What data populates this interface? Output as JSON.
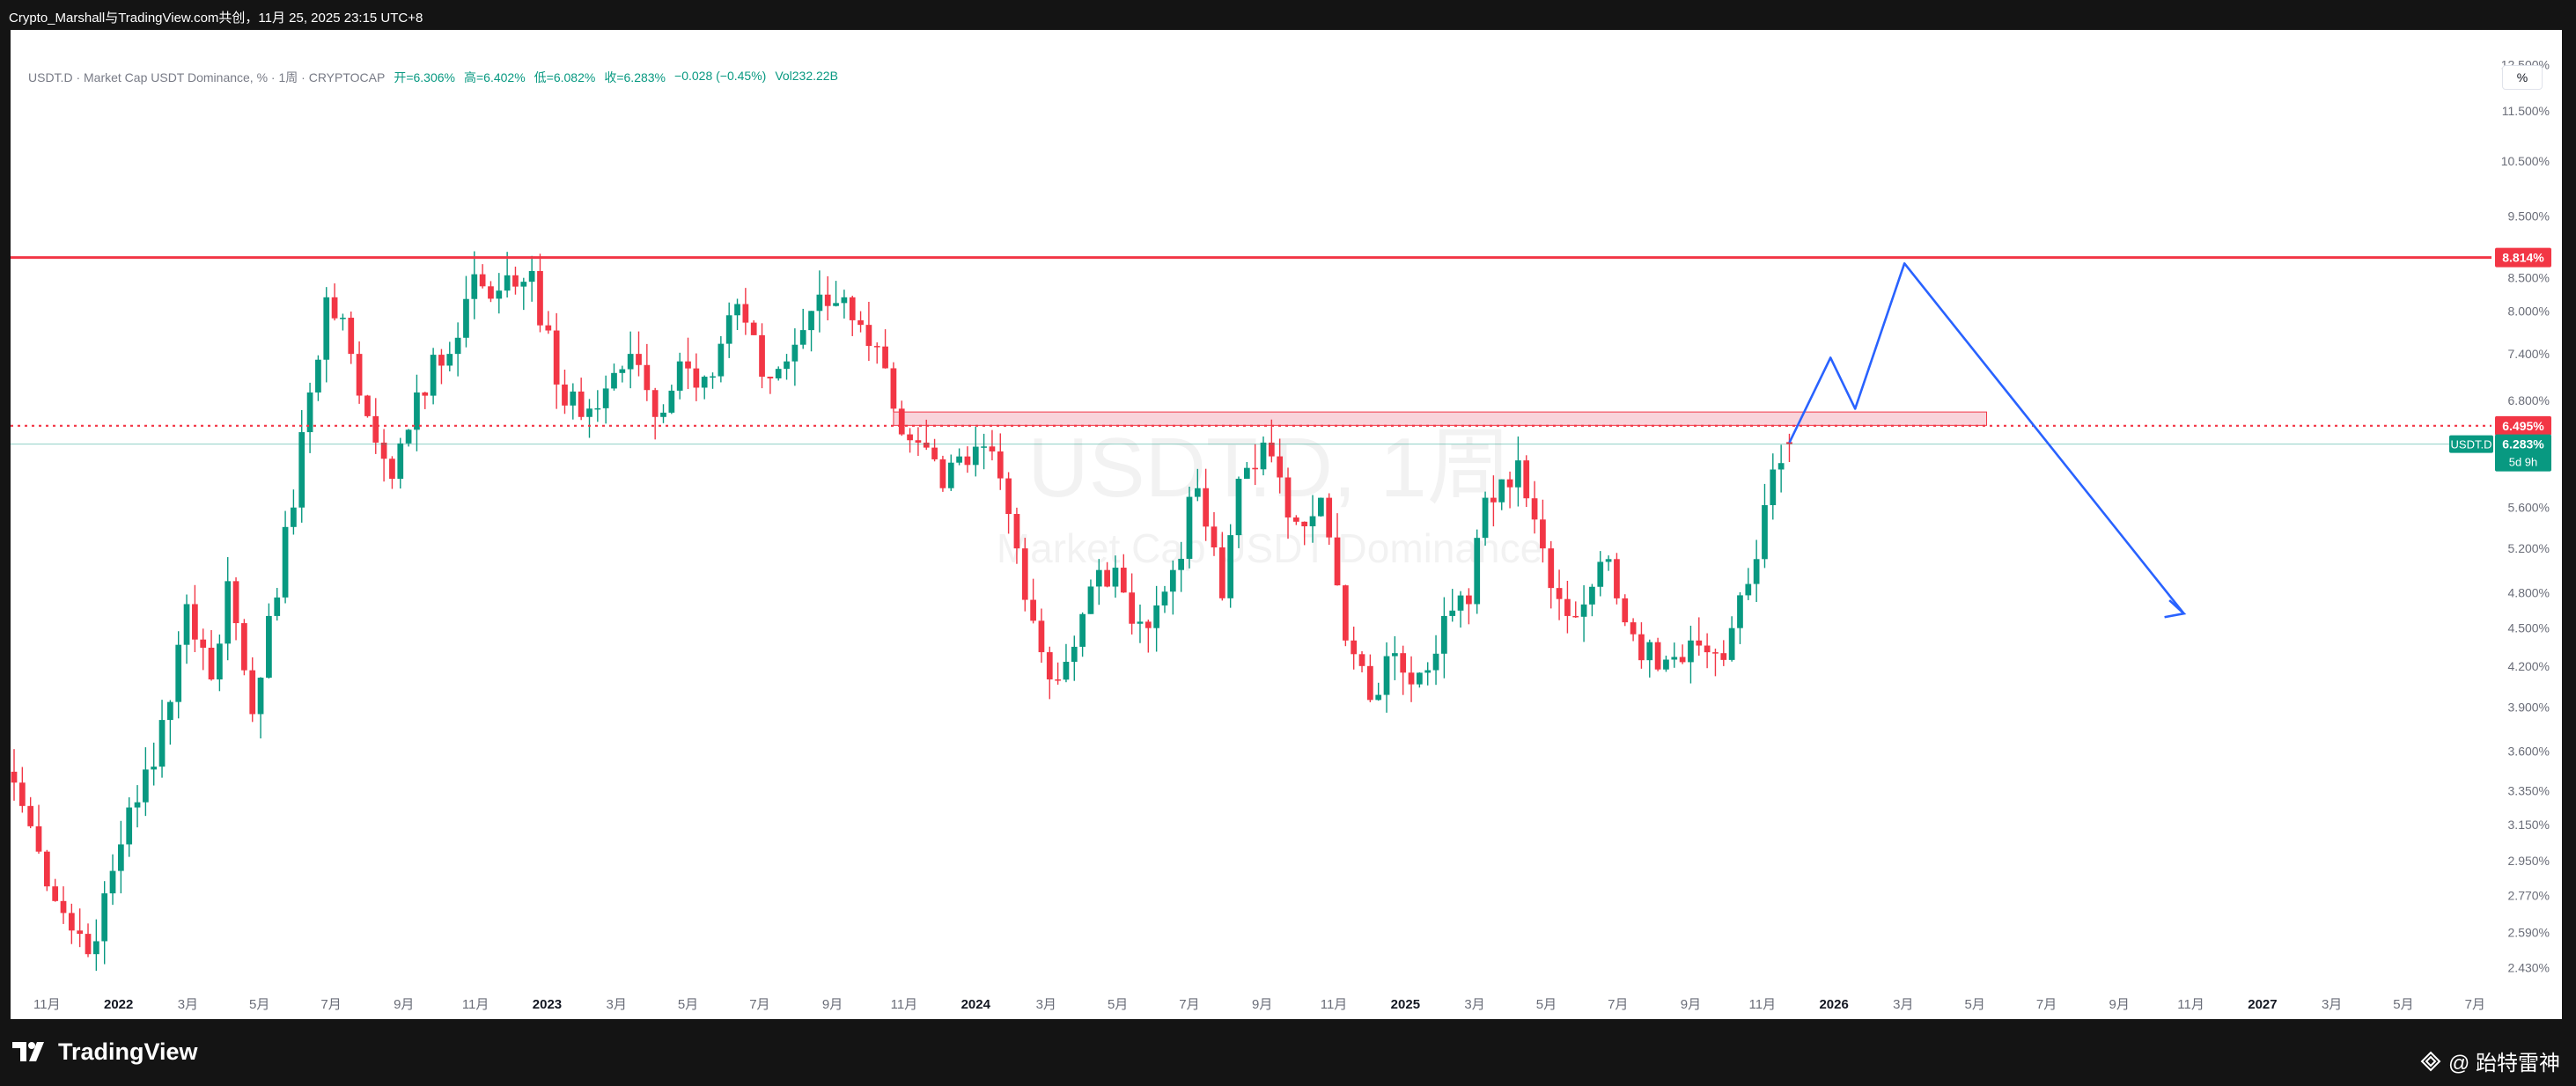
{
  "header": {
    "title": "Crypto_Marshall与TradingView.com共创，11月 25, 2025 23:15 UTC+8"
  },
  "legend": {
    "symbol": "USDT.D · Market Cap USDT Dominance, % · 1周 · CRYPTOCAP",
    "open_label": "开=6.306%",
    "high_label": "高=6.402%",
    "low_label": "低=6.082%",
    "close_label": "收=6.283%",
    "change": "−0.028 (−0.45%)",
    "volume": "Vol232.22B"
  },
  "scale_button": "%",
  "watermark": {
    "main": "USDT.D, 1周",
    "sub": "Market Cap USDT Dominance"
  },
  "footer": {
    "brand": "TradingView",
    "handle": "@ 跆特雷神"
  },
  "colors": {
    "up": "#089981",
    "down": "#f23645",
    "resistance": "#f23645",
    "projection": "#2962ff",
    "zone_fill": "#f7c6cf",
    "zone_border": "#f23645"
  },
  "chart_data": {
    "type": "candlestick",
    "timeframe": "1W",
    "y_scale": "log",
    "ylim": [
      2.33,
      12.9
    ],
    "y_ticks": [
      12.5,
      11.5,
      10.5,
      9.5,
      8.5,
      8.0,
      7.4,
      6.8,
      5.6,
      5.2,
      4.8,
      4.5,
      4.2,
      3.9,
      3.6,
      3.35,
      3.15,
      2.95,
      2.77,
      2.59,
      2.43
    ],
    "y_tick_labels": [
      "12.500%",
      "11.500%",
      "10.500%",
      "9.500%",
      "8.500%",
      "8.000%",
      "7.400%",
      "6.800%",
      "5.600%",
      "5.200%",
      "4.800%",
      "4.500%",
      "4.200%",
      "3.900%",
      "3.600%",
      "3.350%",
      "3.150%",
      "2.950%",
      "2.770%",
      "2.590%",
      "2.430%"
    ],
    "x_range": [
      "2021-10-01",
      "2027-07-15"
    ],
    "x_ticks": [
      {
        "date": "2021-11-01",
        "label": "11月",
        "bold": false
      },
      {
        "date": "2022-01-01",
        "label": "2022",
        "bold": true
      },
      {
        "date": "2022-03-01",
        "label": "3月",
        "bold": false
      },
      {
        "date": "2022-05-01",
        "label": "5月",
        "bold": false
      },
      {
        "date": "2022-07-01",
        "label": "7月",
        "bold": false
      },
      {
        "date": "2022-09-01",
        "label": "9月",
        "bold": false
      },
      {
        "date": "2022-11-01",
        "label": "11月",
        "bold": false
      },
      {
        "date": "2023-01-01",
        "label": "2023",
        "bold": true
      },
      {
        "date": "2023-03-01",
        "label": "3月",
        "bold": false
      },
      {
        "date": "2023-05-01",
        "label": "5月",
        "bold": false
      },
      {
        "date": "2023-07-01",
        "label": "7月",
        "bold": false
      },
      {
        "date": "2023-09-01",
        "label": "9月",
        "bold": false
      },
      {
        "date": "2023-11-01",
        "label": "11月",
        "bold": false
      },
      {
        "date": "2024-01-01",
        "label": "2024",
        "bold": true
      },
      {
        "date": "2024-03-01",
        "label": "3月",
        "bold": false
      },
      {
        "date": "2024-05-01",
        "label": "5月",
        "bold": false
      },
      {
        "date": "2024-07-01",
        "label": "7月",
        "bold": false
      },
      {
        "date": "2024-09-01",
        "label": "9月",
        "bold": false
      },
      {
        "date": "2024-11-01",
        "label": "11月",
        "bold": false
      },
      {
        "date": "2025-01-01",
        "label": "2025",
        "bold": true
      },
      {
        "date": "2025-03-01",
        "label": "3月",
        "bold": false
      },
      {
        "date": "2025-05-01",
        "label": "5月",
        "bold": false
      },
      {
        "date": "2025-07-01",
        "label": "7月",
        "bold": false
      },
      {
        "date": "2025-09-01",
        "label": "9月",
        "bold": false
      },
      {
        "date": "2025-11-01",
        "label": "11月",
        "bold": false
      },
      {
        "date": "2026-01-01",
        "label": "2026",
        "bold": true
      },
      {
        "date": "2026-03-01",
        "label": "3月",
        "bold": false
      },
      {
        "date": "2026-05-01",
        "label": "5月",
        "bold": false
      },
      {
        "date": "2026-07-01",
        "label": "7月",
        "bold": false
      },
      {
        "date": "2026-09-01",
        "label": "9月",
        "bold": false
      },
      {
        "date": "2026-11-01",
        "label": "11月",
        "bold": false
      },
      {
        "date": "2027-01-01",
        "label": "2027",
        "bold": true
      },
      {
        "date": "2027-03-01",
        "label": "3月",
        "bold": false
      },
      {
        "date": "2027-05-01",
        "label": "5月",
        "bold": false
      },
      {
        "date": "2027-07-01",
        "label": "7月",
        "bold": false
      }
    ],
    "anchors": [
      {
        "date": "2021-10-04",
        "close": 3.4
      },
      {
        "date": "2021-10-25",
        "close": 3.0
      },
      {
        "date": "2021-11-22",
        "close": 2.6
      },
      {
        "date": "2021-12-13",
        "close": 2.55
      },
      {
        "date": "2022-01-10",
        "close": 3.25
      },
      {
        "date": "2022-01-31",
        "close": 3.5
      },
      {
        "date": "2022-02-28",
        "close": 4.7
      },
      {
        "date": "2022-03-21",
        "close": 4.1
      },
      {
        "date": "2022-04-04",
        "close": 4.9
      },
      {
        "date": "2022-04-25",
        "close": 3.85
      },
      {
        "date": "2022-05-09",
        "close": 4.6
      },
      {
        "date": "2022-05-30",
        "close": 5.6
      },
      {
        "date": "2022-06-13",
        "close": 6.9
      },
      {
        "date": "2022-06-27",
        "close": 8.2
      },
      {
        "date": "2022-07-18",
        "close": 7.4
      },
      {
        "date": "2022-08-08",
        "close": 6.3
      },
      {
        "date": "2022-08-22",
        "close": 5.9
      },
      {
        "date": "2022-09-12",
        "close": 6.9
      },
      {
        "date": "2022-10-10",
        "close": 7.4
      },
      {
        "date": "2022-10-31",
        "close": 8.55
      },
      {
        "date": "2022-11-21",
        "close": 8.3
      },
      {
        "date": "2022-12-19",
        "close": 8.6
      },
      {
        "date": "2023-01-09",
        "close": 7.0
      },
      {
        "date": "2023-01-30",
        "close": 6.6
      },
      {
        "date": "2023-02-20",
        "close": 6.95
      },
      {
        "date": "2023-03-13",
        "close": 7.4
      },
      {
        "date": "2023-04-03",
        "close": 6.6
      },
      {
        "date": "2023-04-24",
        "close": 7.3
      },
      {
        "date": "2023-05-15",
        "close": 7.1
      },
      {
        "date": "2023-06-12",
        "close": 8.1
      },
      {
        "date": "2023-07-03",
        "close": 7.1
      },
      {
        "date": "2023-07-24",
        "close": 7.3
      },
      {
        "date": "2023-08-14",
        "close": 8.0
      },
      {
        "date": "2023-09-11",
        "close": 8.2
      },
      {
        "date": "2023-09-25",
        "close": 7.8
      },
      {
        "date": "2023-10-09",
        "close": 7.5
      },
      {
        "date": "2023-10-23",
        "close": 6.7
      },
      {
        "date": "2023-11-13",
        "close": 6.3
      },
      {
        "date": "2023-12-04",
        "close": 5.8
      },
      {
        "date": "2023-12-25",
        "close": 6.05
      },
      {
        "date": "2024-01-15",
        "close": 6.2
      },
      {
        "date": "2024-02-05",
        "close": 5.2
      },
      {
        "date": "2024-03-04",
        "close": 4.1
      },
      {
        "date": "2024-03-25",
        "close": 4.35
      },
      {
        "date": "2024-04-15",
        "close": 5.0
      },
      {
        "date": "2024-05-06",
        "close": 4.8
      },
      {
        "date": "2024-05-27",
        "close": 4.5
      },
      {
        "date": "2024-06-17",
        "close": 5.0
      },
      {
        "date": "2024-07-08",
        "close": 5.8
      },
      {
        "date": "2024-07-29",
        "close": 4.75
      },
      {
        "date": "2024-08-12",
        "close": 5.9
      },
      {
        "date": "2024-09-02",
        "close": 6.3
      },
      {
        "date": "2024-09-23",
        "close": 5.5
      },
      {
        "date": "2024-10-21",
        "close": 5.7
      },
      {
        "date": "2024-11-11",
        "close": 4.4
      },
      {
        "date": "2024-12-02",
        "close": 3.95
      },
      {
        "date": "2024-12-23",
        "close": 4.3
      },
      {
        "date": "2025-01-13",
        "close": 4.15
      },
      {
        "date": "2025-02-03",
        "close": 4.6
      },
      {
        "date": "2025-02-24",
        "close": 4.7
      },
      {
        "date": "2025-03-10",
        "close": 5.7
      },
      {
        "date": "2025-04-07",
        "close": 6.1
      },
      {
        "date": "2025-04-28",
        "close": 5.2
      },
      {
        "date": "2025-05-19",
        "close": 4.6
      },
      {
        "date": "2025-06-09",
        "close": 4.85
      },
      {
        "date": "2025-06-23",
        "close": 5.1
      },
      {
        "date": "2025-07-14",
        "close": 4.45
      },
      {
        "date": "2025-08-11",
        "close": 4.25
      },
      {
        "date": "2025-09-01",
        "close": 4.4
      },
      {
        "date": "2025-09-22",
        "close": 4.3
      },
      {
        "date": "2025-10-06",
        "close": 4.5
      },
      {
        "date": "2025-10-27",
        "close": 5.1
      },
      {
        "date": "2025-11-10",
        "close": 6.0
      },
      {
        "date": "2025-11-24",
        "close": 6.283
      }
    ],
    "last_candle": {
      "date": "2025-11-24",
      "open": 6.306,
      "high": 6.402,
      "low": 6.082,
      "close": 6.283
    },
    "resistance_line": {
      "value": 8.814,
      "label": "8.814%"
    },
    "dotted_line": {
      "value": 6.495,
      "label": "6.495%"
    },
    "price_line": {
      "value": 6.283,
      "label": "6.283%",
      "symbol": "USDT.D",
      "countdown": "5d 9h"
    },
    "zone": {
      "start": "2023-10-23",
      "end": "2026-05-11",
      "low": 6.5,
      "high": 6.66
    },
    "projection": [
      {
        "date": "2025-11-24",
        "value": 6.3
      },
      {
        "date": "2025-12-29",
        "value": 7.35
      },
      {
        "date": "2026-01-19",
        "value": 6.7
      },
      {
        "date": "2026-03-02",
        "value": 8.72
      },
      {
        "date": "2026-10-26",
        "value": 4.62
      }
    ],
    "projection_arrow_tail": {
      "date": "2026-10-12",
      "value": 4.66
    }
  }
}
